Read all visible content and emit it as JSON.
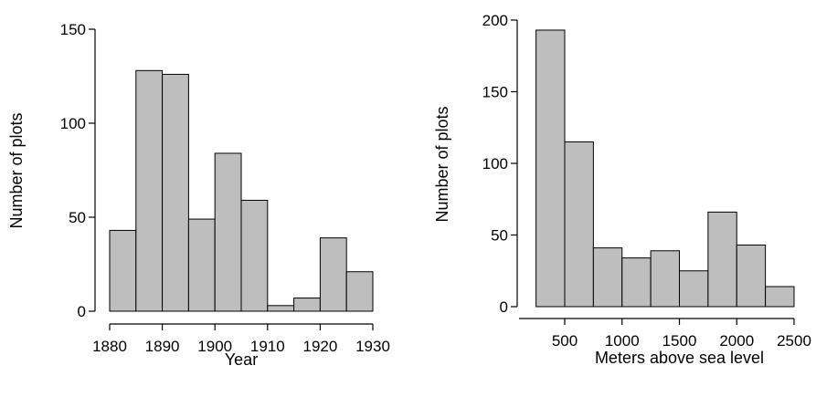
{
  "chart_data": [
    {
      "type": "bar",
      "subtype": "histogram",
      "bar_color": "#bebebe",
      "xlabel": "Year",
      "ylabel": "Number of plots",
      "bin_edges": [
        1880,
        1885,
        1890,
        1895,
        1900,
        1905,
        1910,
        1915,
        1920,
        1925,
        1930
      ],
      "values": [
        43,
        128,
        126,
        49,
        84,
        59,
        3,
        7,
        39,
        21
      ],
      "xlim": [
        1880,
        1930
      ],
      "ylim": [
        0,
        150
      ],
      "xticks": [
        "1880",
        "1890",
        "1900",
        "1910",
        "1920",
        "1930"
      ],
      "yticks": [
        "0",
        "50",
        "100",
        "150"
      ],
      "grid": false
    },
    {
      "type": "bar",
      "subtype": "histogram",
      "bar_color": "#bebebe",
      "xlabel": "Meters above sea level",
      "ylabel": "Number of plots",
      "bin_edges": [
        250,
        500,
        750,
        1000,
        1250,
        1500,
        1750,
        2000,
        2250,
        2500
      ],
      "values": [
        193,
        115,
        41,
        34,
        39,
        25,
        66,
        43,
        14
      ],
      "xlim": [
        500,
        2500
      ],
      "ylim": [
        0,
        200
      ],
      "xticks": [
        "500",
        "1000",
        "1500",
        "2000",
        "2500"
      ],
      "yticks": [
        "0",
        "50",
        "100",
        "150",
        "200"
      ],
      "grid": false
    }
  ]
}
